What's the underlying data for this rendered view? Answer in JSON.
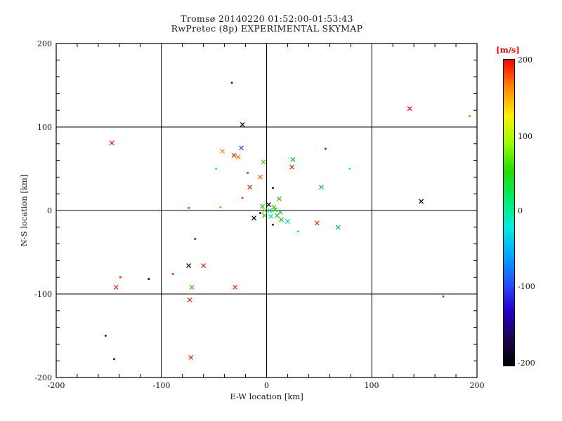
{
  "title": {
    "line1": "Tromsø 20140220 01:52:00-01:53:43",
    "line2": "RwPretec (8p) EXPERIMENTAL SKYMAP"
  },
  "axes": {
    "xlabel": "E-W location [km]",
    "ylabel": "N-S location [km]",
    "xlim": [
      -200,
      200
    ],
    "ylim": [
      -200,
      200
    ],
    "x_ticks": [
      "-200",
      "-100",
      "0",
      "100",
      "200"
    ],
    "y_ticks": [
      "200",
      "100",
      "0",
      "-100",
      "-200"
    ],
    "grid_lines": [
      -100,
      0,
      100
    ],
    "minor_tick_step": 20,
    "frame_color": "#000000"
  },
  "colorbar": {
    "label": "[m/s]",
    "label_color": "#ff0000",
    "ticks": [
      "200",
      "100",
      "0",
      "-100",
      "-200"
    ],
    "min": -200,
    "max": 200,
    "stops": [
      "#ff0000",
      "#ff8800",
      "#ffee00",
      "#99ff00",
      "#22dd00",
      "#00ee66",
      "#00eedd",
      "#00aaff",
      "#2255ff",
      "#2200cc",
      "#220055",
      "#000000"
    ]
  },
  "chart_data": {
    "type": "scatter",
    "title": "Tromsø 20140220 01:52:00-01:53:43 / RwPretec (8p) EXPERIMENTAL SKYMAP",
    "xlabel": "E-W location [km]",
    "ylabel": "N-S location [km]",
    "xlim": [
      -200,
      200
    ],
    "ylim": [
      -200,
      200
    ],
    "legend": "colorbar [m/s] from -200 (black/blue) to 200 (red)",
    "points": [
      {
        "x": -33,
        "y": 153,
        "color": "#000000",
        "marker": "dot"
      },
      {
        "x": 136,
        "y": 122,
        "color": "#ff0000",
        "marker": "x"
      },
      {
        "x": 193,
        "y": 113,
        "color": "#998800",
        "marker": "dot"
      },
      {
        "x": -23,
        "y": 103,
        "color": "#000000",
        "marker": "x"
      },
      {
        "x": -147,
        "y": 81,
        "color": "#ff2200",
        "marker": "x"
      },
      {
        "x": 56,
        "y": 74,
        "color": "#bb0000",
        "marker": "dot"
      },
      {
        "x": -24,
        "y": 75,
        "color": "#2244ff",
        "marker": "x"
      },
      {
        "x": -42,
        "y": 71,
        "color": "#ff8800",
        "marker": "x"
      },
      {
        "x": -31,
        "y": 66,
        "color": "#ff2200",
        "marker": "x"
      },
      {
        "x": -27,
        "y": 64,
        "color": "#ff7700",
        "marker": "x"
      },
      {
        "x": 25,
        "y": 61,
        "color": "#00cc22",
        "marker": "x"
      },
      {
        "x": -3,
        "y": 58,
        "color": "#44cc00",
        "marker": "x"
      },
      {
        "x": -48,
        "y": 50,
        "color": "#00ddbb",
        "marker": "dot"
      },
      {
        "x": 24,
        "y": 52,
        "color": "#ff1100",
        "marker": "x"
      },
      {
        "x": 79,
        "y": 50,
        "color": "#00eeaa",
        "marker": "dot"
      },
      {
        "x": -18,
        "y": 45,
        "color": "#ff2200",
        "marker": "dot"
      },
      {
        "x": -6,
        "y": 40,
        "color": "#ff6600",
        "marker": "x"
      },
      {
        "x": -16,
        "y": 28,
        "color": "#ff2200",
        "marker": "x"
      },
      {
        "x": 6,
        "y": 27,
        "color": "#000000",
        "marker": "dot"
      },
      {
        "x": 52,
        "y": 28,
        "color": "#00cc44",
        "marker": "x"
      },
      {
        "x": -23,
        "y": 15,
        "color": "#ff2200",
        "marker": "dot"
      },
      {
        "x": 12,
        "y": 14,
        "color": "#22cc00",
        "marker": "x"
      },
      {
        "x": 147,
        "y": 11,
        "color": "#000000",
        "marker": "x"
      },
      {
        "x": -44,
        "y": 4,
        "color": "#ff8800",
        "marker": "dot"
      },
      {
        "x": -74,
        "y": 3,
        "color": "#ff2200",
        "marker": "dot"
      },
      {
        "x": -4,
        "y": 5,
        "color": "#22cc00",
        "marker": "x"
      },
      {
        "x": 2,
        "y": 7,
        "color": "#000000",
        "marker": "x"
      },
      {
        "x": 7,
        "y": 4,
        "color": "#33cc00",
        "marker": "x"
      },
      {
        "x": -2,
        "y": 0,
        "color": "#88cc00",
        "marker": "x"
      },
      {
        "x": 3,
        "y": 0,
        "color": "#00ccaa",
        "marker": "x"
      },
      {
        "x": 8,
        "y": 1,
        "color": "#22cc00",
        "marker": "x"
      },
      {
        "x": 13,
        "y": -2,
        "color": "#00cc44",
        "marker": "x"
      },
      {
        "x": -6,
        "y": -3,
        "color": "#000000",
        "marker": "dot"
      },
      {
        "x": -2,
        "y": -6,
        "color": "#33cc00",
        "marker": "x"
      },
      {
        "x": 4,
        "y": -7,
        "color": "#00ddcc",
        "marker": "x"
      },
      {
        "x": 10,
        "y": -6,
        "color": "#22cc00",
        "marker": "x"
      },
      {
        "x": -12,
        "y": -9,
        "color": "#000000",
        "marker": "x"
      },
      {
        "x": 14,
        "y": -11,
        "color": "#22cc00",
        "marker": "x"
      },
      {
        "x": 20,
        "y": -13,
        "color": "#00ccdd",
        "marker": "x"
      },
      {
        "x": 6,
        "y": -17,
        "color": "#000000",
        "marker": "dot"
      },
      {
        "x": 48,
        "y": -15,
        "color": "#ff2200",
        "marker": "x"
      },
      {
        "x": 68,
        "y": -20,
        "color": "#00cc44",
        "marker": "x"
      },
      {
        "x": 30,
        "y": -25,
        "color": "#00ddcc",
        "marker": "dot"
      },
      {
        "x": -68,
        "y": -34,
        "color": "#aa0000",
        "marker": "dot"
      },
      {
        "x": -74,
        "y": -66,
        "color": "#000000",
        "marker": "x"
      },
      {
        "x": -60,
        "y": -66,
        "color": "#ff2200",
        "marker": "x"
      },
      {
        "x": -89,
        "y": -76,
        "color": "#ff2200",
        "marker": "dot"
      },
      {
        "x": -139,
        "y": -80,
        "color": "#ff2200",
        "marker": "dot"
      },
      {
        "x": -112,
        "y": -82,
        "color": "#000000",
        "marker": "dot"
      },
      {
        "x": -143,
        "y": -92,
        "color": "#ff2200",
        "marker": "x"
      },
      {
        "x": -71,
        "y": -92,
        "color": "#22cc00",
        "marker": "x"
      },
      {
        "x": -30,
        "y": -92,
        "color": "#ff2200",
        "marker": "x"
      },
      {
        "x": 168,
        "y": -103,
        "color": "#ff2200",
        "marker": "dot"
      },
      {
        "x": -73,
        "y": -107,
        "color": "#ff2200",
        "marker": "x"
      },
      {
        "x": -153,
        "y": -150,
        "color": "#000000",
        "marker": "dot"
      },
      {
        "x": -145,
        "y": -178,
        "color": "#000000",
        "marker": "dot"
      },
      {
        "x": -72,
        "y": -176,
        "color": "#ff2200",
        "marker": "x"
      }
    ]
  }
}
